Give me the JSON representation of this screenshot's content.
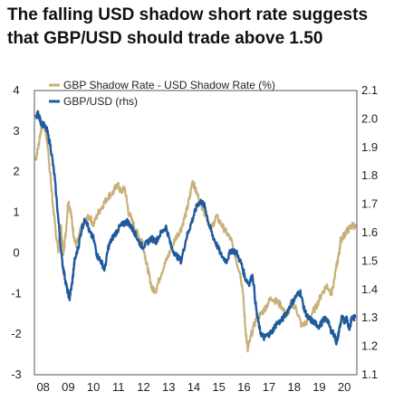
{
  "title": [
    "The falling USD shadow short rate suggests",
    "that GBP/USD should trade above 1.50"
  ],
  "chart_data": {
    "type": "line",
    "title": "The falling USD shadow short rate suggests that GBP/USD should trade above 1.50",
    "x_tick_labels": [
      "08",
      "09",
      "10",
      "11",
      "12",
      "13",
      "14",
      "15",
      "16",
      "17",
      "18",
      "19",
      "20"
    ],
    "x_tick_positions": [
      2008,
      2009,
      2010,
      2011,
      2012,
      2013,
      2014,
      2015,
      2016,
      2017,
      2018,
      2019,
      2020
    ],
    "xlim": [
      2007.65,
      2020.5
    ],
    "y_left": {
      "lim": [
        -3,
        4
      ],
      "ticks": [
        "4",
        "3",
        "2",
        "1",
        "0",
        "-1",
        "-2",
        "-3"
      ],
      "tick_values": [
        4,
        3,
        2,
        1,
        0,
        -1,
        -2,
        -3
      ]
    },
    "y_right": {
      "lim": [
        1.1,
        2.1
      ],
      "ticks": [
        "2.1",
        "2.0",
        "1.9",
        "1.8",
        "1.7",
        "1.6",
        "1.5",
        "1.4",
        "1.3",
        "1.2",
        "1.1"
      ],
      "tick_values": [
        2.1,
        2.0,
        1.9,
        1.8,
        1.7,
        1.6,
        1.5,
        1.4,
        1.3,
        1.2,
        1.1
      ]
    },
    "grid": false,
    "legend_placement": "top-left",
    "series": [
      {
        "name": "GBP Shadow Rate - USD Shadow Rate (%)",
        "axis": "left",
        "color": "#c9b07a",
        "x": [
          2007.7,
          2007.8,
          2007.9,
          2008.0,
          2008.1,
          2008.2,
          2008.3,
          2008.4,
          2008.5,
          2008.6,
          2008.7,
          2008.8,
          2008.9,
          2009.0,
          2009.1,
          2009.2,
          2009.3,
          2009.4,
          2009.5,
          2009.7,
          2009.85,
          2010.0,
          2010.2,
          2010.4,
          2010.6,
          2010.8,
          2010.95,
          2011.1,
          2011.25,
          2011.4,
          2011.6,
          2011.8,
          2011.95,
          2012.1,
          2012.2,
          2012.35,
          2012.5,
          2012.7,
          2012.9,
          2013.1,
          2013.3,
          2013.5,
          2013.7,
          2013.85,
          2013.95,
          2014.1,
          2014.3,
          2014.5,
          2014.7,
          2014.9,
          2015.1,
          2015.3,
          2015.5,
          2015.7,
          2015.85,
          2015.95,
          2016.05,
          2016.15,
          2016.3,
          2016.5,
          2016.7,
          2016.9,
          2017.1,
          2017.3,
          2017.5,
          2017.7,
          2017.9,
          2018.1,
          2018.3,
          2018.5,
          2018.7,
          2018.9,
          2019.1,
          2019.3,
          2019.5,
          2019.7,
          2019.8,
          2019.85,
          2019.95,
          2020.05,
          2020.2,
          2020.35,
          2020.45
        ],
        "values": [
          2.3,
          2.6,
          3.0,
          3.2,
          3.0,
          2.5,
          1.8,
          1.1,
          0.5,
          0.1,
          0.7,
          0.0,
          0.5,
          1.3,
          1.0,
          0.5,
          0.2,
          0.3,
          0.6,
          0.8,
          0.9,
          0.7,
          1.0,
          1.2,
          1.4,
          1.5,
          1.7,
          1.5,
          1.6,
          1.0,
          0.7,
          0.4,
          0.3,
          -0.2,
          -0.5,
          -0.9,
          -0.9,
          -0.5,
          -0.2,
          0.1,
          0.4,
          0.6,
          1.0,
          1.4,
          1.8,
          1.5,
          1.2,
          0.9,
          0.6,
          0.9,
          0.7,
          0.5,
          0.3,
          -0.2,
          -0.5,
          -0.9,
          -1.8,
          -2.4,
          -2.0,
          -1.6,
          -1.5,
          -1.3,
          -1.1,
          -1.2,
          -1.3,
          -1.6,
          -1.2,
          -1.4,
          -1.8,
          -1.7,
          -1.5,
          -1.3,
          -1.0,
          -0.8,
          -1.0,
          -0.3,
          0.0,
          0.3,
          0.4,
          0.5,
          0.6,
          0.7,
          0.6
        ]
      },
      {
        "name": "GBP/USD (rhs)",
        "axis": "right",
        "color": "#1f5a9c",
        "x": [
          2007.7,
          2007.8,
          2007.9,
          2008.0,
          2008.15,
          2008.3,
          2008.45,
          2008.6,
          2008.75,
          2008.85,
          2008.95,
          2009.05,
          2009.15,
          2009.25,
          2009.4,
          2009.55,
          2009.7,
          2009.85,
          2010.0,
          2010.15,
          2010.3,
          2010.45,
          2010.6,
          2010.75,
          2010.9,
          2011.05,
          2011.2,
          2011.35,
          2011.5,
          2011.65,
          2011.8,
          2011.95,
          2012.1,
          2012.3,
          2012.5,
          2012.7,
          2012.9,
          2013.1,
          2013.3,
          2013.5,
          2013.7,
          2013.85,
          2014.0,
          2014.15,
          2014.3,
          2014.45,
          2014.6,
          2014.75,
          2014.9,
          2015.1,
          2015.3,
          2015.5,
          2015.7,
          2015.9,
          2016.05,
          2016.2,
          2016.35,
          2016.5,
          2016.65,
          2016.8,
          2016.95,
          2017.1,
          2017.3,
          2017.5,
          2017.7,
          2017.9,
          2018.1,
          2018.25,
          2018.4,
          2018.55,
          2018.7,
          2018.85,
          2019.0,
          2019.15,
          2019.3,
          2019.45,
          2019.6,
          2019.7,
          2019.8,
          2019.9,
          2020.0,
          2020.1,
          2020.2,
          2020.3,
          2020.45
        ],
        "values": [
          2.0,
          2.02,
          1.99,
          1.98,
          1.96,
          1.9,
          1.8,
          1.65,
          1.5,
          1.45,
          1.4,
          1.37,
          1.42,
          1.5,
          1.55,
          1.62,
          1.65,
          1.6,
          1.58,
          1.52,
          1.5,
          1.47,
          1.55,
          1.58,
          1.6,
          1.62,
          1.63,
          1.64,
          1.62,
          1.6,
          1.57,
          1.55,
          1.56,
          1.58,
          1.57,
          1.6,
          1.62,
          1.55,
          1.52,
          1.5,
          1.58,
          1.62,
          1.66,
          1.7,
          1.71,
          1.69,
          1.63,
          1.59,
          1.56,
          1.52,
          1.5,
          1.54,
          1.53,
          1.49,
          1.44,
          1.42,
          1.45,
          1.32,
          1.25,
          1.23,
          1.24,
          1.25,
          1.28,
          1.29,
          1.32,
          1.35,
          1.38,
          1.39,
          1.33,
          1.3,
          1.29,
          1.28,
          1.27,
          1.29,
          1.3,
          1.26,
          1.24,
          1.21,
          1.26,
          1.3,
          1.29,
          1.3,
          1.26,
          1.3,
          1.3
        ]
      }
    ]
  }
}
